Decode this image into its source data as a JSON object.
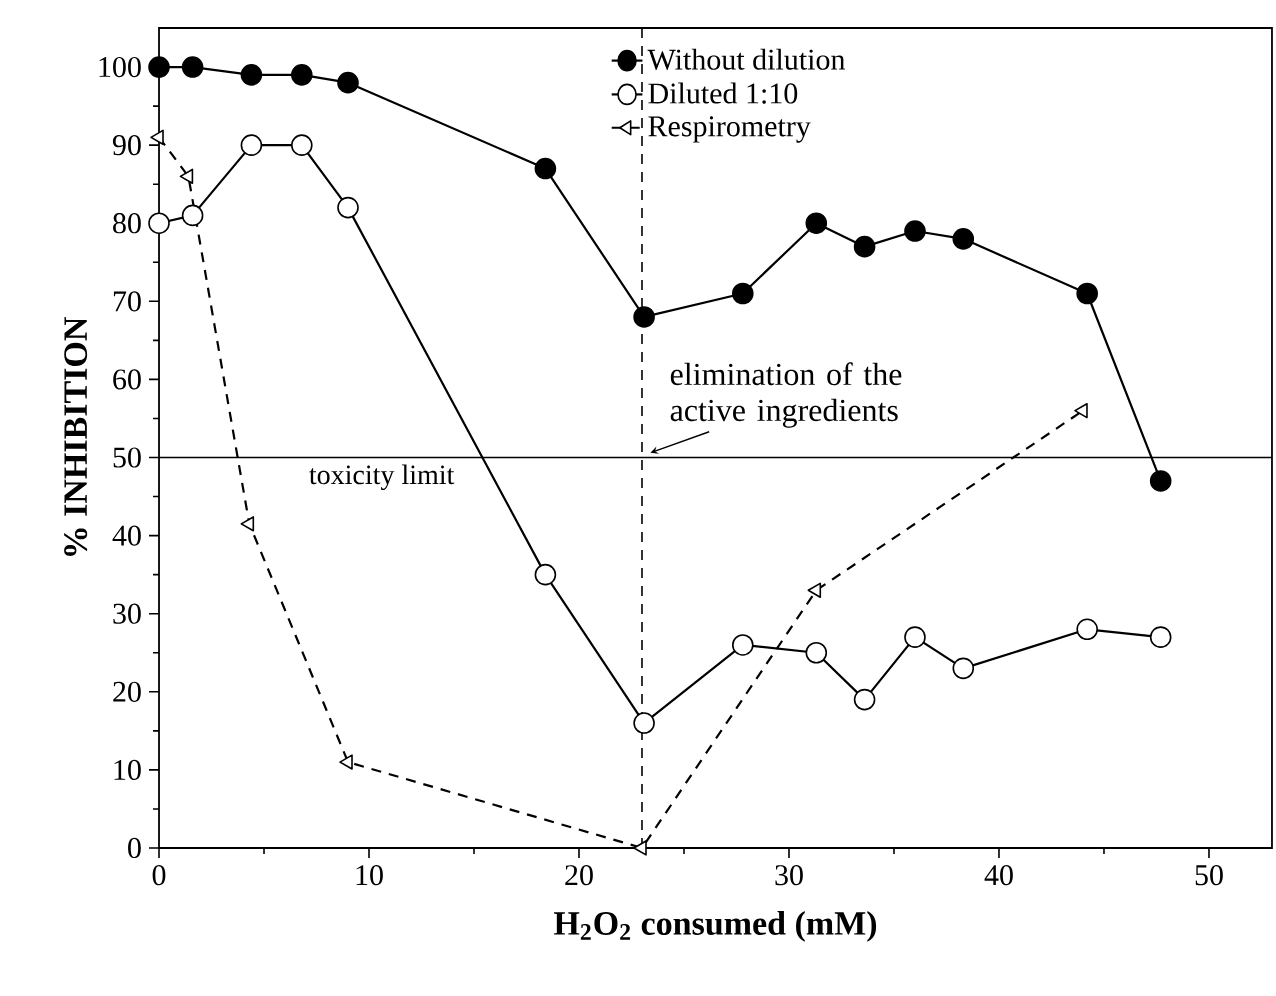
{
  "chart_data": {
    "type": "line",
    "xlabel": "H$_{2}$O$_{2}$ consumed (mM)",
    "ylabel": "% INHIBITION",
    "xlim": [
      0,
      53
    ],
    "ylim": [
      0,
      105
    ],
    "xticks": [
      0,
      10,
      20,
      30,
      40,
      50
    ],
    "yticks": [
      0,
      10,
      20,
      30,
      40,
      50,
      60,
      70,
      80,
      90,
      100
    ],
    "grid": false,
    "legend": "top",
    "series": [
      {
        "name": "Without dilution",
        "color": "#000000",
        "marker": "circle",
        "line_style": "solid",
        "x": [
          0,
          1.6,
          4.4,
          6.8,
          9.0,
          18.4,
          23.1,
          27.8,
          31.3,
          33.6,
          36.0,
          38.3,
          44.2,
          47.7
        ],
        "values": [
          100,
          100,
          99,
          99,
          98,
          87,
          68,
          71,
          80,
          77,
          79,
          78,
          71,
          47
        ]
      },
      {
        "name": "Diluted 1:10",
        "color": "#000000",
        "marker": "circle",
        "line_style": "solid",
        "x": [
          0,
          1.6,
          4.4,
          6.8,
          9.0,
          18.4,
          23.1,
          27.8,
          31.3,
          33.6,
          36.0,
          38.3,
          44.2,
          47.7
        ],
        "values": [
          80,
          81,
          90,
          90,
          82,
          35,
          16,
          26,
          25,
          19,
          27,
          23,
          28,
          27
        ]
      },
      {
        "name": "Respirometry",
        "color": "#000000",
        "marker": "triangle",
        "line_style": "dashed",
        "x": [
          0,
          1.4,
          4.3,
          9.0,
          23.0,
          31.3,
          44.0
        ],
        "values": [
          91,
          86,
          41.5,
          11,
          0,
          33,
          56
        ]
      }
    ],
    "ref_lines": [
      {
        "axis": "x",
        "value": 23,
        "line_style": "dashed",
        "color": "#000000"
      },
      {
        "axis": "y",
        "value": 50,
        "label": "toxicity limit",
        "line_style": "solid",
        "color": "#000000"
      }
    ],
    "annotations": [
      {
        "text": "elimination of the active ingredients",
        "x": 23,
        "y": 50
      }
    ]
  }
}
